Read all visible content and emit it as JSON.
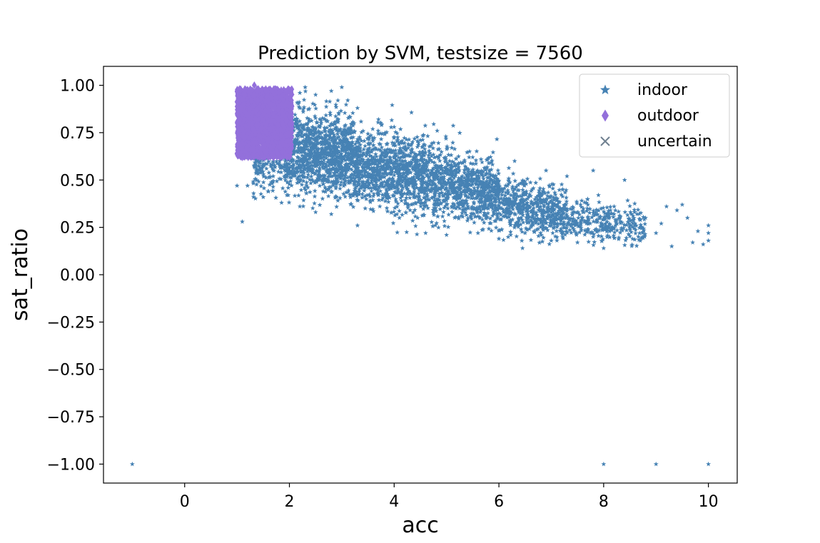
{
  "chart_data": {
    "type": "scatter",
    "title": "Prediction by SVM, testsize = 7560",
    "xlabel": "acc",
    "ylabel": "sat_ratio",
    "xlim": [
      -1.55,
      10.55
    ],
    "ylim": [
      -1.1,
      1.1
    ],
    "xticks": [
      0,
      2,
      4,
      6,
      8,
      10
    ],
    "xtick_labels": [
      "0",
      "2",
      "4",
      "6",
      "8",
      "10"
    ],
    "yticks": [
      1.0,
      0.75,
      0.5,
      0.25,
      0.0,
      -0.25,
      -0.5,
      -0.75,
      -1.0
    ],
    "ytick_labels": [
      "1.00",
      "0.75",
      "0.50",
      "0.25",
      "0.00",
      "−0.25",
      "−0.50",
      "−0.75",
      "−1.00"
    ],
    "grid": false,
    "legend": "top-right",
    "series": [
      {
        "name": "indoor",
        "marker": "star",
        "color": "#4682b4",
        "points": [
          [
            -1.0,
            -1.0
          ],
          [
            8.0,
            -1.0
          ],
          [
            9.0,
            -1.0
          ],
          [
            10.0,
            -1.0
          ],
          [
            1.1,
            0.28
          ],
          [
            1.0,
            0.47
          ],
          [
            1.2,
            0.47
          ],
          [
            1.5,
            0.41
          ],
          [
            1.6,
            0.44
          ],
          [
            1.85,
            0.38
          ],
          [
            2.2,
            0.36
          ],
          [
            2.5,
            0.33
          ],
          [
            2.8,
            0.32
          ],
          [
            3.3,
            0.26
          ],
          [
            4.1,
            0.3
          ],
          [
            4.6,
            0.22
          ],
          [
            5.0,
            0.21
          ],
          [
            5.6,
            0.22
          ],
          [
            6.0,
            0.19
          ],
          [
            6.5,
            0.22
          ],
          [
            7.0,
            0.18
          ],
          [
            7.5,
            0.17
          ],
          [
            7.8,
            0.2
          ],
          [
            8.0,
            0.14
          ],
          [
            8.4,
            0.5
          ],
          [
            7.8,
            0.55
          ],
          [
            7.3,
            0.52
          ],
          [
            6.9,
            0.55
          ],
          [
            6.3,
            0.6
          ],
          [
            5.5,
            0.62
          ],
          [
            5.1,
            0.67
          ],
          [
            4.7,
            0.68
          ],
          [
            4.5,
            0.71
          ],
          [
            4.0,
            0.78
          ],
          [
            3.7,
            0.82
          ],
          [
            3.3,
            0.88
          ],
          [
            3.0,
            0.99
          ],
          [
            2.8,
            0.97
          ],
          [
            2.5,
            0.95
          ],
          [
            2.2,
            0.96
          ],
          [
            2.0,
            0.98
          ],
          [
            8.8,
            0.3
          ],
          [
            9.1,
            0.27
          ],
          [
            9.4,
            0.34
          ],
          [
            9.6,
            0.3
          ],
          [
            9.8,
            0.23
          ],
          [
            10.0,
            0.26
          ],
          [
            10.0,
            0.22
          ],
          [
            10.0,
            0.18
          ],
          [
            9.9,
            0.16
          ],
          [
            9.7,
            0.17
          ],
          [
            9.3,
            0.15
          ],
          [
            9.0,
            0.22
          ],
          [
            8.7,
            0.18
          ],
          [
            9.5,
            0.37
          ],
          [
            9.2,
            0.36
          ],
          [
            8.6,
            0.27
          ],
          [
            8.2,
            0.36
          ],
          [
            7.9,
            0.42
          ]
        ],
        "cloud": [
          {
            "x": [
              1.9,
              3.2
            ],
            "center": [
              0.66,
              0.62
            ],
            "spread": [
              0.11,
              0.11
            ],
            "n": 1100
          },
          {
            "x": [
              3.2,
              4.6
            ],
            "center": [
              0.58,
              0.52
            ],
            "spread": [
              0.1,
              0.1
            ],
            "n": 1000
          },
          {
            "x": [
              4.6,
              6.0
            ],
            "center": [
              0.5,
              0.43
            ],
            "spread": [
              0.09,
              0.09
            ],
            "n": 850
          },
          {
            "x": [
              6.0,
              7.3
            ],
            "center": [
              0.38,
              0.31
            ],
            "spread": [
              0.07,
              0.07
            ],
            "n": 550
          },
          {
            "x": [
              7.3,
              8.8
            ],
            "center": [
              0.3,
              0.24
            ],
            "spread": [
              0.05,
              0.05
            ],
            "n": 300
          },
          {
            "x": [
              1.3,
              2.0
            ],
            "center": [
              0.55,
              0.6
            ],
            "spread": [
              0.07,
              0.07
            ],
            "n": 160
          }
        ]
      },
      {
        "name": "outdoor",
        "marker": "diamond",
        "color": "#9370db",
        "cloud": [
          {
            "x": [
              1.0,
              2.05
            ],
            "y": [
              0.62,
              0.98
            ],
            "n": 1700
          }
        ],
        "points": [
          [
            1.33,
            1.0
          ],
          [
            1.05,
            0.98
          ],
          [
            1.15,
            0.95
          ],
          [
            1.55,
            0.97
          ],
          [
            1.7,
            0.96
          ],
          [
            1.95,
            0.94
          ],
          [
            1.0,
            0.64
          ],
          [
            1.1,
            0.62
          ],
          [
            1.2,
            0.63
          ]
        ]
      },
      {
        "name": "uncertain",
        "marker": "x",
        "color": "#708090",
        "points": []
      }
    ]
  }
}
